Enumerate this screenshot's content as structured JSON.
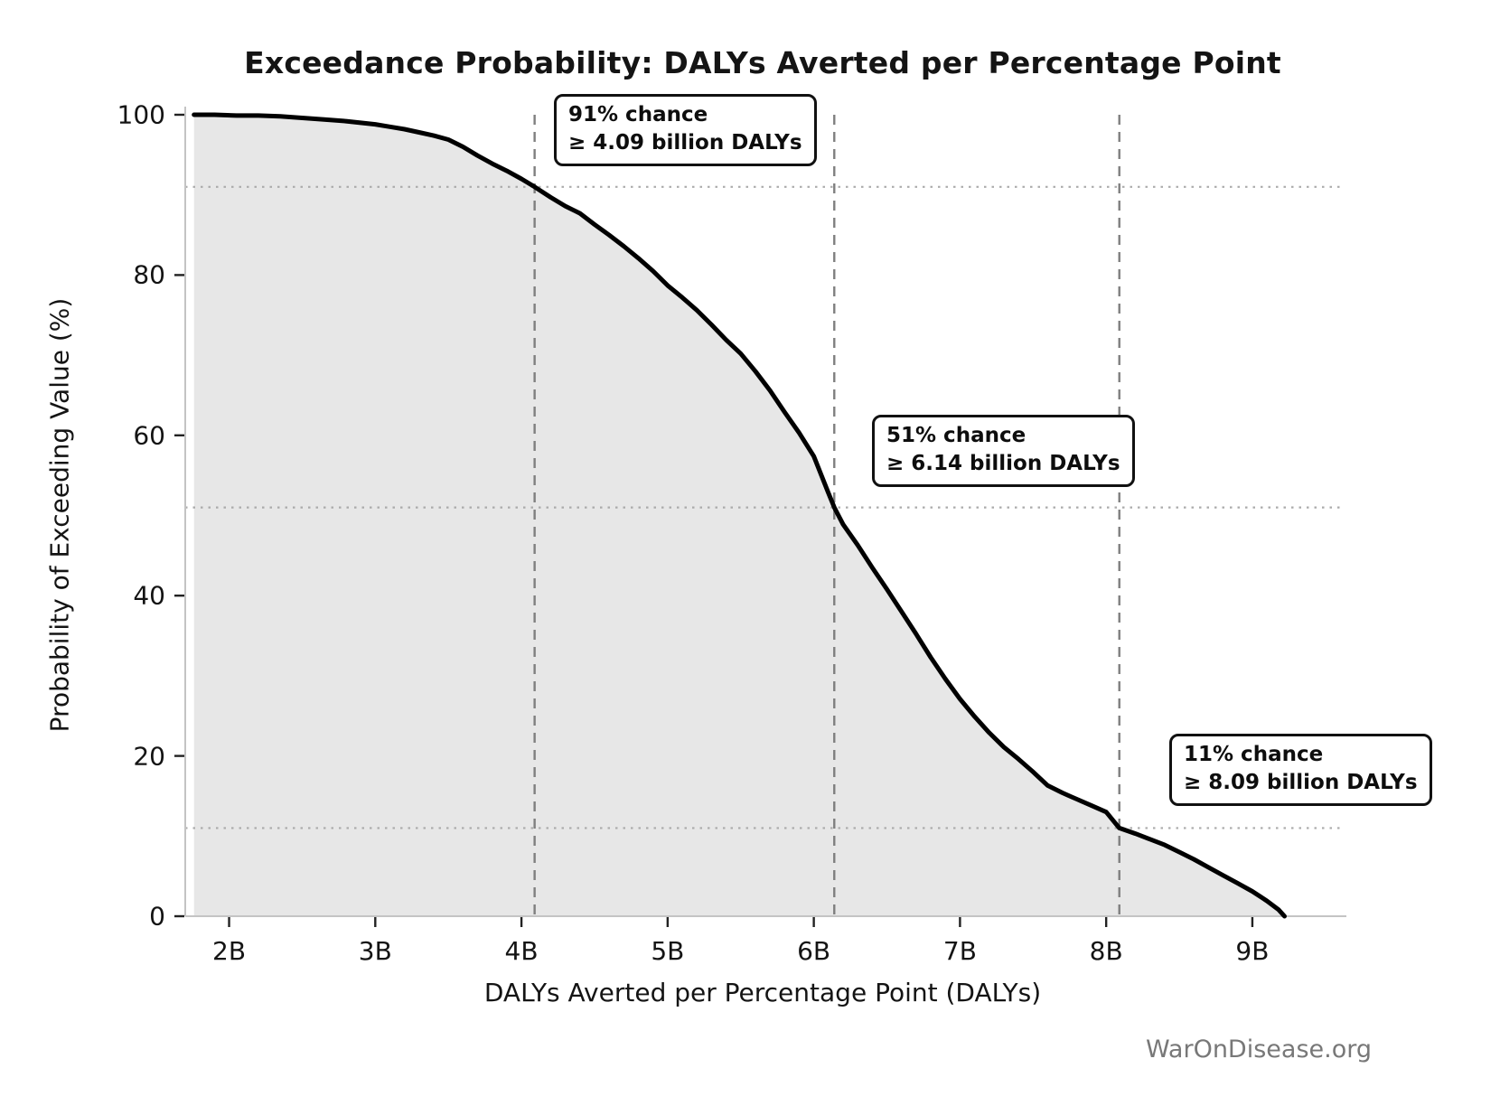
{
  "watermark": "WarOnDisease.org",
  "chart_data": {
    "type": "area",
    "title": "Exceedance Probability: DALYs Averted per Percentage Point",
    "xlabel": "DALYs Averted per Percentage Point (DALYs)",
    "ylabel": "Probability of Exceeding Value (%)",
    "xlim": [
      1.7,
      9.6
    ],
    "ylim": [
      0,
      100
    ],
    "grid": "reference lines only",
    "legend": "none",
    "x_ticks": [
      {
        "value": 2,
        "label": "2B"
      },
      {
        "value": 3,
        "label": "3B"
      },
      {
        "value": 4,
        "label": "4B"
      },
      {
        "value": 5,
        "label": "5B"
      },
      {
        "value": 6,
        "label": "6B"
      },
      {
        "value": 7,
        "label": "7B"
      },
      {
        "value": 8,
        "label": "8B"
      },
      {
        "value": 9,
        "label": "9B"
      }
    ],
    "y_ticks": [
      {
        "value": 0,
        "label": "0"
      },
      {
        "value": 20,
        "label": "20"
      },
      {
        "value": 40,
        "label": "40"
      },
      {
        "value": 60,
        "label": "60"
      },
      {
        "value": 80,
        "label": "80"
      },
      {
        "value": 100,
        "label": "100"
      }
    ],
    "series": [
      {
        "name": "exceedance-probability-curve",
        "line_color": "#000000",
        "line_width": 5,
        "fill_color": "#e7e7e7",
        "points": [
          [
            1.76,
            100.0
          ],
          [
            1.9,
            100.0
          ],
          [
            2.05,
            99.9
          ],
          [
            2.2,
            99.9
          ],
          [
            2.35,
            99.8
          ],
          [
            2.5,
            99.6
          ],
          [
            2.65,
            99.4
          ],
          [
            2.8,
            99.2
          ],
          [
            2.9,
            99.0
          ],
          [
            3.0,
            98.8
          ],
          [
            3.1,
            98.5
          ],
          [
            3.2,
            98.2
          ],
          [
            3.3,
            97.8
          ],
          [
            3.4,
            97.4
          ],
          [
            3.5,
            96.9
          ],
          [
            3.6,
            96.0
          ],
          [
            3.7,
            94.9
          ],
          [
            3.8,
            93.9
          ],
          [
            3.9,
            93.0
          ],
          [
            4.0,
            92.0
          ],
          [
            4.09,
            91.0
          ],
          [
            4.2,
            89.7
          ],
          [
            4.3,
            88.6
          ],
          [
            4.4,
            87.7
          ],
          [
            4.5,
            86.3
          ],
          [
            4.6,
            85.0
          ],
          [
            4.7,
            83.6
          ],
          [
            4.8,
            82.1
          ],
          [
            4.9,
            80.5
          ],
          [
            5.0,
            78.7
          ],
          [
            5.1,
            77.2
          ],
          [
            5.2,
            75.6
          ],
          [
            5.3,
            73.8
          ],
          [
            5.4,
            71.9
          ],
          [
            5.5,
            70.2
          ],
          [
            5.6,
            68.0
          ],
          [
            5.7,
            65.6
          ],
          [
            5.8,
            62.9
          ],
          [
            5.9,
            60.3
          ],
          [
            6.0,
            57.4
          ],
          [
            6.1,
            52.8
          ],
          [
            6.14,
            51.0
          ],
          [
            6.2,
            48.9
          ],
          [
            6.3,
            46.3
          ],
          [
            6.4,
            43.5
          ],
          [
            6.5,
            40.8
          ],
          [
            6.6,
            38.0
          ],
          [
            6.7,
            35.2
          ],
          [
            6.8,
            32.3
          ],
          [
            6.9,
            29.6
          ],
          [
            7.0,
            27.1
          ],
          [
            7.1,
            24.9
          ],
          [
            7.2,
            22.9
          ],
          [
            7.3,
            21.1
          ],
          [
            7.4,
            19.6
          ],
          [
            7.5,
            18.0
          ],
          [
            7.6,
            16.3
          ],
          [
            7.7,
            15.4
          ],
          [
            7.75,
            15.0
          ],
          [
            7.8,
            14.6
          ],
          [
            7.9,
            13.8
          ],
          [
            8.0,
            13.0
          ],
          [
            8.09,
            11.0
          ],
          [
            8.2,
            10.3
          ],
          [
            8.3,
            9.6
          ],
          [
            8.4,
            8.9
          ],
          [
            8.5,
            8.0
          ],
          [
            8.6,
            7.1
          ],
          [
            8.7,
            6.1
          ],
          [
            8.8,
            5.1
          ],
          [
            8.9,
            4.1
          ],
          [
            9.0,
            3.1
          ],
          [
            9.1,
            1.9
          ],
          [
            9.18,
            0.8
          ],
          [
            9.22,
            0.0
          ]
        ]
      }
    ],
    "reference_lines": {
      "vertical_dashed_x": [
        4.09,
        6.14,
        8.09
      ],
      "vertical_dashed_color": "#7f7f7f",
      "horizontal_dotted_y": [
        91,
        51,
        11
      ],
      "horizontal_dotted_color": "#ababab"
    },
    "annotations": [
      {
        "line1": "91% chance",
        "line2": "≥ 4.09 billion DALYs",
        "x": 4.09,
        "probability": 91
      },
      {
        "line1": "51% chance",
        "line2": "≥ 6.14 billion DALYs",
        "x": 6.14,
        "probability": 51
      },
      {
        "line1": "11% chance",
        "line2": "≥ 8.09 billion DALYs",
        "x": 8.09,
        "probability": 11
      }
    ],
    "colors": {
      "curve": "#000000",
      "area_fill": "#e7e7e7",
      "spine": "#c4c4c4",
      "tick_mark": "#222222",
      "text": "#141414",
      "watermark": "#787878",
      "annotation_border": "#111111",
      "annotation_bg": "#ffffff"
    }
  }
}
